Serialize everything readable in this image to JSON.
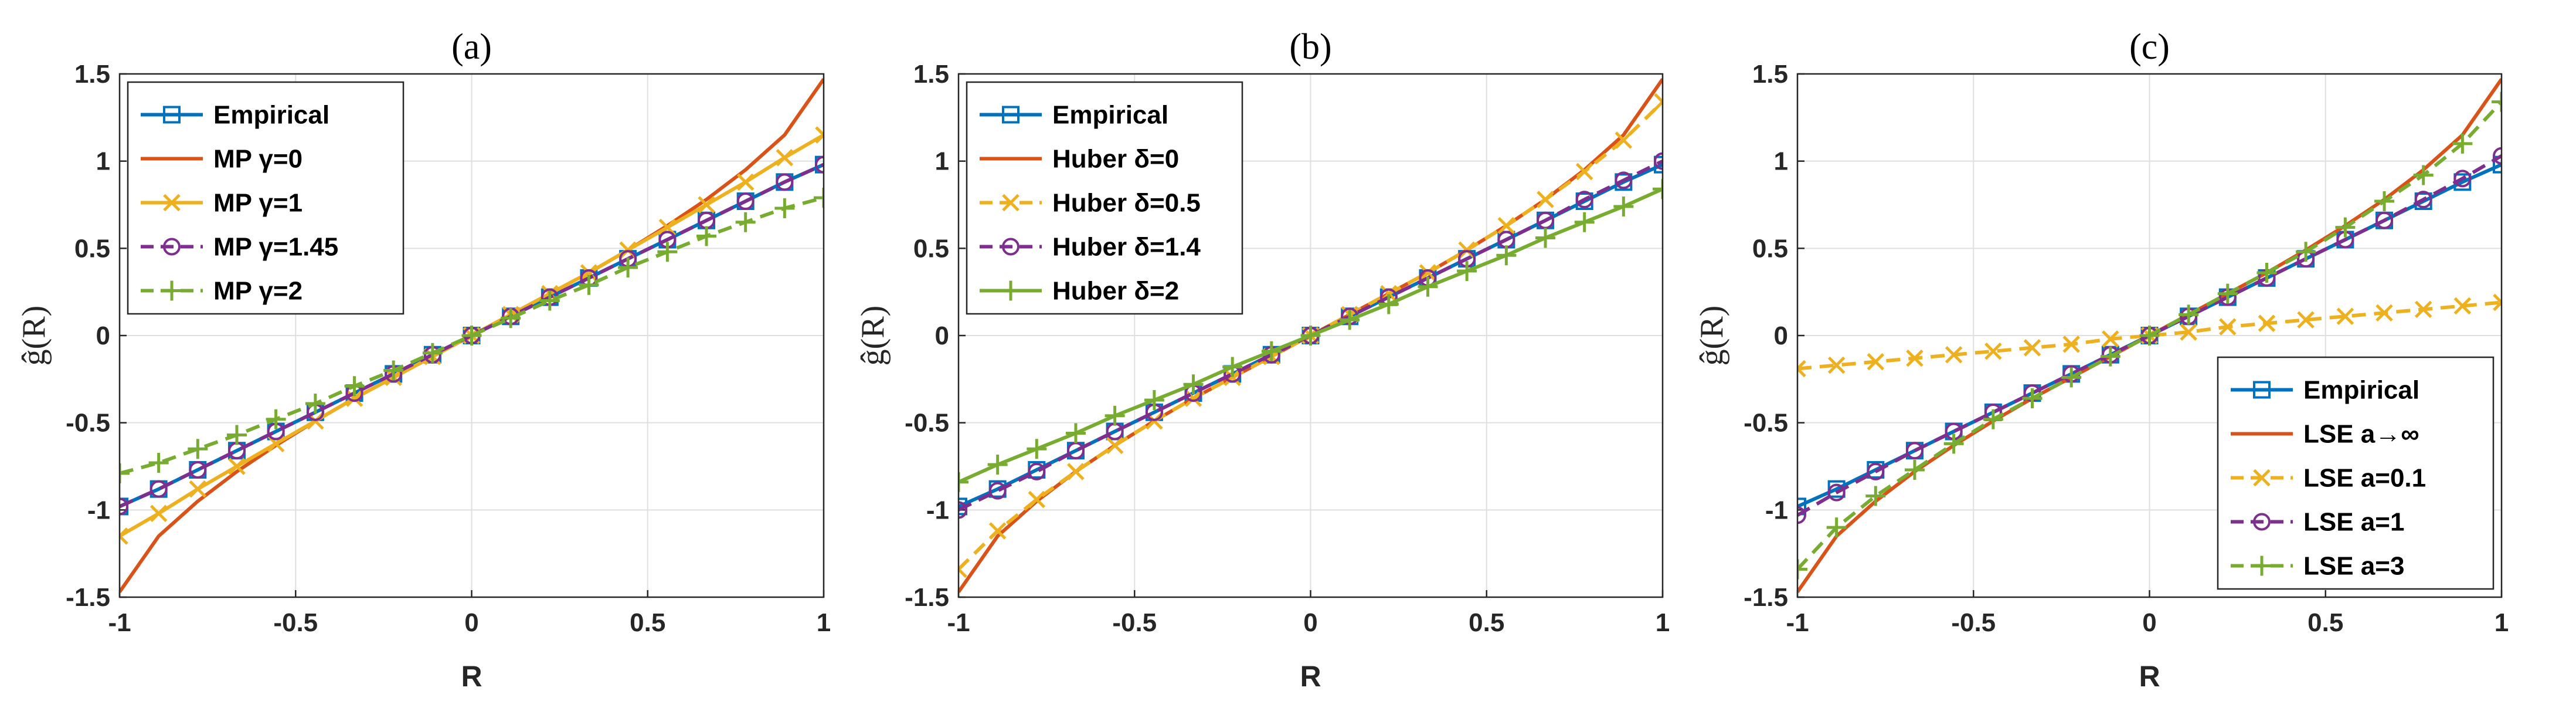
{
  "figure": {
    "background": "#ffffff"
  },
  "chart_data": [
    {
      "type": "line",
      "title": "(a)",
      "xlabel": "R",
      "ylabel": "ĝ(R)",
      "xlim": [
        -1,
        1
      ],
      "ylim": [
        -1.5,
        1.5
      ],
      "xticks": [
        "-1",
        "-0.5",
        "0",
        "0.5",
        "1"
      ],
      "yticks": [
        "-1.5",
        "-1",
        "-0.5",
        "0",
        "0.5",
        "1",
        "1.5"
      ],
      "grid": true,
      "legend_position": "top-left",
      "series": [
        {
          "name": "Empirical",
          "color": "#0072bd",
          "marker": "square",
          "dash": "solid",
          "x": [
            -1,
            -0.889,
            -0.778,
            -0.667,
            -0.556,
            -0.444,
            -0.333,
            -0.222,
            -0.111,
            0,
            0.111,
            0.222,
            0.333,
            0.444,
            0.556,
            0.667,
            0.778,
            0.889,
            1
          ],
          "y": [
            -0.98,
            -0.88,
            -0.77,
            -0.66,
            -0.55,
            -0.44,
            -0.33,
            -0.22,
            -0.11,
            0,
            0.11,
            0.22,
            0.33,
            0.44,
            0.55,
            0.66,
            0.77,
            0.88,
            0.98
          ]
        },
        {
          "name": "MP γ=0",
          "color": "#d95319",
          "marker": "none",
          "dash": "solid",
          "x": [
            -1,
            -0.889,
            -0.778,
            -0.667,
            -0.556,
            -0.444,
            -0.333,
            -0.222,
            -0.111,
            0,
            0.111,
            0.222,
            0.333,
            0.444,
            0.556,
            0.667,
            0.778,
            0.889,
            1
          ],
          "y": [
            -1.47,
            -1.15,
            -0.95,
            -0.78,
            -0.63,
            -0.49,
            -0.36,
            -0.24,
            -0.12,
            0,
            0.12,
            0.24,
            0.36,
            0.49,
            0.63,
            0.78,
            0.95,
            1.15,
            1.47
          ]
        },
        {
          "name": "MP γ=1",
          "color": "#edb120",
          "marker": "x",
          "dash": "solid",
          "x": [
            -1,
            -0.889,
            -0.778,
            -0.667,
            -0.556,
            -0.444,
            -0.333,
            -0.222,
            -0.111,
            0,
            0.111,
            0.222,
            0.333,
            0.444,
            0.556,
            0.667,
            0.778,
            0.889,
            1
          ],
          "y": [
            -1.15,
            -1.02,
            -0.88,
            -0.75,
            -0.62,
            -0.49,
            -0.36,
            -0.24,
            -0.12,
            0,
            0.12,
            0.24,
            0.36,
            0.49,
            0.62,
            0.75,
            0.88,
            1.02,
            1.15
          ]
        },
        {
          "name": "MP γ=1.45",
          "color": "#7e2f8e",
          "marker": "circle",
          "dash": "dash",
          "x": [
            -1,
            -0.889,
            -0.778,
            -0.667,
            -0.556,
            -0.444,
            -0.333,
            -0.222,
            -0.111,
            0,
            0.111,
            0.222,
            0.333,
            0.444,
            0.556,
            0.667,
            0.778,
            0.889,
            1
          ],
          "y": [
            -0.98,
            -0.88,
            -0.77,
            -0.66,
            -0.55,
            -0.44,
            -0.33,
            -0.22,
            -0.11,
            0,
            0.11,
            0.22,
            0.33,
            0.44,
            0.55,
            0.66,
            0.77,
            0.88,
            0.98
          ]
        },
        {
          "name": "MP γ=2",
          "color": "#77ac30",
          "marker": "plus",
          "dash": "dash",
          "x": [
            -1,
            -0.889,
            -0.778,
            -0.667,
            -0.556,
            -0.444,
            -0.333,
            -0.222,
            -0.111,
            0,
            0.111,
            0.222,
            0.333,
            0.444,
            0.556,
            0.667,
            0.778,
            0.889,
            1
          ],
          "y": [
            -0.79,
            -0.73,
            -0.65,
            -0.57,
            -0.48,
            -0.39,
            -0.29,
            -0.2,
            -0.1,
            0,
            0.1,
            0.2,
            0.29,
            0.39,
            0.48,
            0.57,
            0.65,
            0.73,
            0.79
          ]
        }
      ]
    },
    {
      "type": "line",
      "title": "(b)",
      "xlabel": "R",
      "ylabel": "ĝ(R)",
      "xlim": [
        -1,
        1
      ],
      "ylim": [
        -1.5,
        1.5
      ],
      "xticks": [
        "-1",
        "-0.5",
        "0",
        "0.5",
        "1"
      ],
      "yticks": [
        "-1.5",
        "-1",
        "-0.5",
        "0",
        "0.5",
        "1",
        "1.5"
      ],
      "grid": true,
      "legend_position": "top-left",
      "series": [
        {
          "name": "Empirical",
          "color": "#0072bd",
          "marker": "square",
          "dash": "solid",
          "x": [
            -1,
            -0.889,
            -0.778,
            -0.667,
            -0.556,
            -0.444,
            -0.333,
            -0.222,
            -0.111,
            0,
            0.111,
            0.222,
            0.333,
            0.444,
            0.556,
            0.667,
            0.778,
            0.889,
            1
          ],
          "y": [
            -0.98,
            -0.88,
            -0.77,
            -0.66,
            -0.55,
            -0.44,
            -0.33,
            -0.22,
            -0.11,
            0,
            0.11,
            0.22,
            0.33,
            0.44,
            0.55,
            0.66,
            0.77,
            0.88,
            0.98
          ]
        },
        {
          "name": "Huber δ=0",
          "color": "#d95319",
          "marker": "none",
          "dash": "solid",
          "x": [
            -1,
            -0.889,
            -0.778,
            -0.667,
            -0.556,
            -0.444,
            -0.333,
            -0.222,
            -0.111,
            0,
            0.111,
            0.222,
            0.333,
            0.444,
            0.556,
            0.667,
            0.778,
            0.889,
            1
          ],
          "y": [
            -1.47,
            -1.15,
            -0.95,
            -0.78,
            -0.63,
            -0.49,
            -0.36,
            -0.24,
            -0.12,
            0,
            0.12,
            0.24,
            0.36,
            0.49,
            0.63,
            0.78,
            0.95,
            1.15,
            1.47
          ]
        },
        {
          "name": "Huber δ=0.5",
          "color": "#edb120",
          "marker": "x",
          "dash": "dash",
          "x": [
            -1,
            -0.889,
            -0.778,
            -0.667,
            -0.556,
            -0.444,
            -0.333,
            -0.222,
            -0.111,
            0,
            0.111,
            0.222,
            0.333,
            0.444,
            0.556,
            0.667,
            0.778,
            0.889,
            1
          ],
          "y": [
            -1.34,
            -1.12,
            -0.94,
            -0.78,
            -0.63,
            -0.49,
            -0.36,
            -0.24,
            -0.12,
            0,
            0.12,
            0.24,
            0.36,
            0.49,
            0.63,
            0.78,
            0.94,
            1.12,
            1.34
          ]
        },
        {
          "name": "Huber δ=1.4",
          "color": "#7e2f8e",
          "marker": "circle",
          "dash": "dash",
          "x": [
            -1,
            -0.889,
            -0.778,
            -0.667,
            -0.556,
            -0.444,
            -0.333,
            -0.222,
            -0.111,
            0,
            0.111,
            0.222,
            0.333,
            0.444,
            0.556,
            0.667,
            0.778,
            0.889,
            1
          ],
          "y": [
            -1.0,
            -0.89,
            -0.78,
            -0.66,
            -0.55,
            -0.44,
            -0.33,
            -0.22,
            -0.11,
            0,
            0.11,
            0.22,
            0.33,
            0.44,
            0.55,
            0.66,
            0.78,
            0.89,
            1.0
          ]
        },
        {
          "name": "Huber δ=2",
          "color": "#77ac30",
          "marker": "plus",
          "dash": "solid",
          "x": [
            -1,
            -0.889,
            -0.778,
            -0.667,
            -0.556,
            -0.444,
            -0.333,
            -0.222,
            -0.111,
            0,
            0.111,
            0.222,
            0.333,
            0.444,
            0.556,
            0.667,
            0.778,
            0.889,
            1
          ],
          "y": [
            -0.84,
            -0.74,
            -0.65,
            -0.56,
            -0.46,
            -0.37,
            -0.28,
            -0.18,
            -0.09,
            0,
            0.09,
            0.18,
            0.28,
            0.37,
            0.46,
            0.56,
            0.65,
            0.74,
            0.84
          ]
        }
      ]
    },
    {
      "type": "line",
      "title": "(c)",
      "xlabel": "R",
      "ylabel": "ĝ(R)",
      "xlim": [
        -1,
        1
      ],
      "ylim": [
        -1.5,
        1.5
      ],
      "xticks": [
        "-1",
        "-0.5",
        "0",
        "0.5",
        "1"
      ],
      "yticks": [
        "-1.5",
        "-1",
        "-0.5",
        "0",
        "0.5",
        "1",
        "1.5"
      ],
      "grid": true,
      "legend_position": "bottom-right",
      "series": [
        {
          "name": "Empirical",
          "color": "#0072bd",
          "marker": "square",
          "dash": "solid",
          "x": [
            -1,
            -0.889,
            -0.778,
            -0.667,
            -0.556,
            -0.444,
            -0.333,
            -0.222,
            -0.111,
            0,
            0.111,
            0.222,
            0.333,
            0.444,
            0.556,
            0.667,
            0.778,
            0.889,
            1
          ],
          "y": [
            -0.98,
            -0.88,
            -0.77,
            -0.66,
            -0.55,
            -0.44,
            -0.33,
            -0.22,
            -0.11,
            0,
            0.11,
            0.22,
            0.33,
            0.44,
            0.55,
            0.66,
            0.77,
            0.88,
            0.98
          ]
        },
        {
          "name": "LSE a→∞",
          "color": "#d95319",
          "marker": "none",
          "dash": "solid",
          "x": [
            -1,
            -0.889,
            -0.778,
            -0.667,
            -0.556,
            -0.444,
            -0.333,
            -0.222,
            -0.111,
            0,
            0.111,
            0.222,
            0.333,
            0.444,
            0.556,
            0.667,
            0.778,
            0.889,
            1
          ],
          "y": [
            -1.47,
            -1.15,
            -0.95,
            -0.78,
            -0.63,
            -0.49,
            -0.36,
            -0.24,
            -0.12,
            0,
            0.12,
            0.24,
            0.36,
            0.49,
            0.63,
            0.78,
            0.95,
            1.15,
            1.47
          ]
        },
        {
          "name": "LSE a=0.1",
          "color": "#edb120",
          "marker": "x",
          "dash": "dash",
          "x": [
            -1,
            -0.889,
            -0.778,
            -0.667,
            -0.556,
            -0.444,
            -0.333,
            -0.222,
            -0.111,
            0,
            0.111,
            0.222,
            0.333,
            0.444,
            0.556,
            0.667,
            0.778,
            0.889,
            1
          ],
          "y": [
            -0.19,
            -0.17,
            -0.15,
            -0.13,
            -0.11,
            -0.09,
            -0.07,
            -0.05,
            -0.02,
            0,
            0.02,
            0.05,
            0.07,
            0.09,
            0.11,
            0.13,
            0.15,
            0.17,
            0.19
          ]
        },
        {
          "name": "LSE a=1",
          "color": "#7e2f8e",
          "marker": "circle",
          "dash": "dash",
          "x": [
            -1,
            -0.889,
            -0.778,
            -0.667,
            -0.556,
            -0.444,
            -0.333,
            -0.222,
            -0.111,
            0,
            0.111,
            0.222,
            0.333,
            0.444,
            0.556,
            0.667,
            0.778,
            0.889,
            1
          ],
          "y": [
            -1.03,
            -0.9,
            -0.78,
            -0.66,
            -0.55,
            -0.44,
            -0.33,
            -0.22,
            -0.11,
            0,
            0.11,
            0.22,
            0.33,
            0.44,
            0.55,
            0.66,
            0.78,
            0.9,
            1.03
          ]
        },
        {
          "name": "LSE a=3",
          "color": "#77ac30",
          "marker": "plus",
          "dash": "dash",
          "x": [
            -1,
            -0.889,
            -0.778,
            -0.667,
            -0.556,
            -0.444,
            -0.333,
            -0.222,
            -0.111,
            0,
            0.111,
            0.222,
            0.333,
            0.444,
            0.556,
            0.667,
            0.778,
            0.889,
            1
          ],
          "y": [
            -1.34,
            -1.1,
            -0.92,
            -0.77,
            -0.62,
            -0.48,
            -0.36,
            -0.24,
            -0.12,
            0,
            0.12,
            0.24,
            0.36,
            0.48,
            0.62,
            0.77,
            0.92,
            1.1,
            1.34
          ]
        }
      ]
    }
  ]
}
